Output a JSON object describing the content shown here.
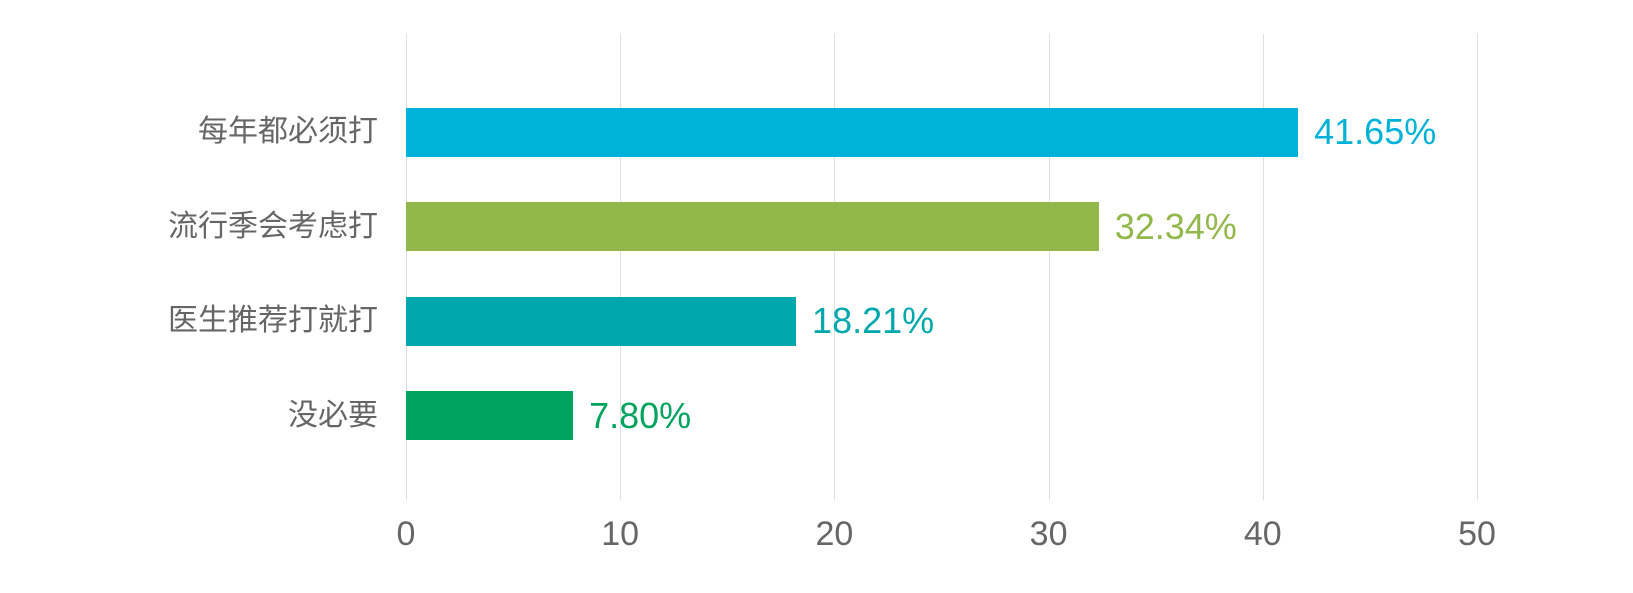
{
  "chart_data": {
    "type": "bar",
    "orientation": "horizontal",
    "title": "",
    "categories": [
      "每年都必须打",
      "流行季会考虑打",
      "医生推荐打就打",
      "没必要"
    ],
    "values": [
      41.65,
      32.34,
      18.21,
      7.8
    ],
    "value_labels": [
      "41.65%",
      "32.34%",
      "18.21%",
      "7.80%"
    ],
    "bar_colors": [
      "#00B1D8",
      "#92B84B",
      "#00A8AD",
      "#00A45E"
    ],
    "x_ticks": [
      0,
      10,
      20,
      30,
      40,
      50
    ],
    "xlim": [
      0,
      50
    ],
    "grid": true,
    "legend": false,
    "background": "#FFFFFF",
    "gridline_color": "#E0E0E0",
    "text_colors": {
      "category_label": "#666666",
      "tick_label": "#666666"
    }
  }
}
